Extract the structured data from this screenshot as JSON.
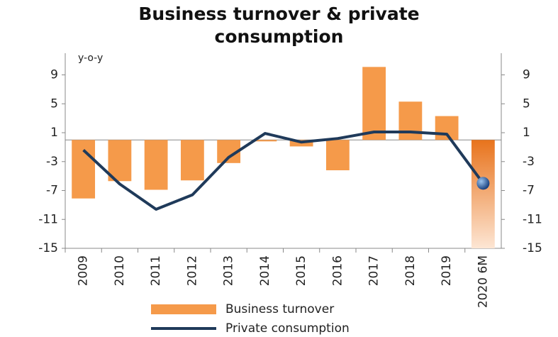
{
  "chart_data": {
    "type": "bar_line",
    "title": "Business turnover & private consumption",
    "y_unit_label": "y-o-y",
    "categories": [
      "2009",
      "2010",
      "2011",
      "2012",
      "2013",
      "2014",
      "2015",
      "2016",
      "2017",
      "2018",
      "2019",
      "2020 6M"
    ],
    "series": [
      {
        "name": "Business turnover",
        "type": "bar",
        "color": "#f59a4a",
        "values": [
          -8.1,
          -5.7,
          -6.9,
          -5.6,
          -3.2,
          -0.2,
          -0.9,
          -4.2,
          10.1,
          5.3,
          3.3,
          -15
        ]
      },
      {
        "name": "Private consumption",
        "type": "line",
        "color": "#1f3a5a",
        "values": [
          -1.4,
          -6.1,
          -9.6,
          -7.6,
          -2.4,
          0.9,
          -0.3,
          0.2,
          1.1,
          1.1,
          0.8,
          -6.0
        ]
      }
    ],
    "ylim": [
      -15,
      12
    ],
    "yticks": [
      -15,
      -11,
      -7,
      -3,
      1,
      5,
      9
    ],
    "y2lim": [
      -15,
      12
    ],
    "y2ticks": [
      -15,
      -11,
      -7,
      -3,
      1,
      5,
      9
    ],
    "legend": "bottom"
  }
}
